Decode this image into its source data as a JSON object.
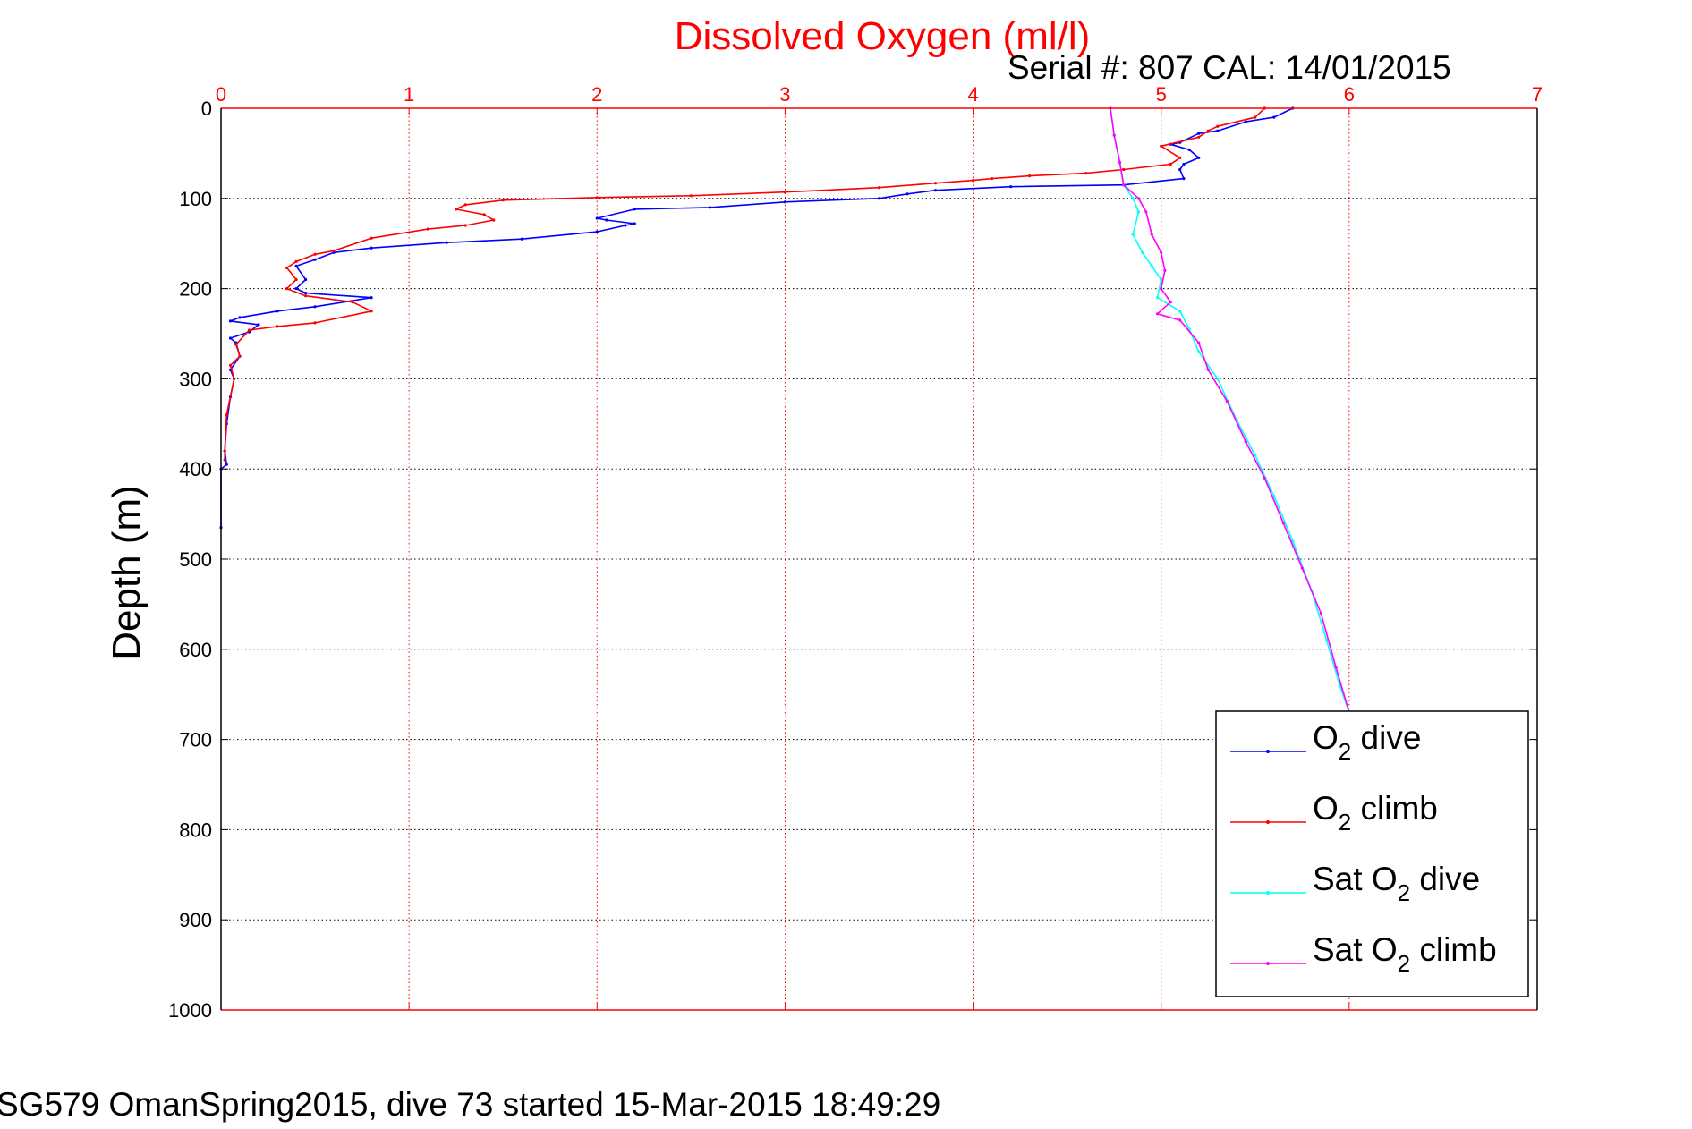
{
  "chart_data": {
    "type": "line",
    "title": "Dissolved Oxygen (ml/l)",
    "subtitle": "Serial #: 807  CAL: 14/01/2015",
    "caption": "SG579 OmanSpring2015, dive 73 started 15-Mar-2015 18:49:29",
    "xlabel": "",
    "ylabel": "Depth (m)",
    "xlim": [
      0,
      7
    ],
    "ylim": [
      0,
      1000
    ],
    "y_reversed": true,
    "x_axis_position": "top",
    "x_ticks": [
      "0",
      "1",
      "2",
      "3",
      "4",
      "5",
      "6",
      "7"
    ],
    "y_ticks": [
      "0",
      "100",
      "200",
      "300",
      "400",
      "500",
      "600",
      "700",
      "800",
      "900",
      "1000"
    ],
    "grid": true,
    "legend_position": "bottom-right",
    "colors": {
      "title": "#ff0000",
      "x_axis": "#ff0000",
      "y_axis": "#000000"
    },
    "series": [
      {
        "name": "O2 dive",
        "legend": {
          "main": "O",
          "sub": "2",
          "rest": " dive"
        },
        "color": "#0000ff",
        "points": [
          [
            5.7,
            0
          ],
          [
            5.6,
            10
          ],
          [
            5.45,
            15
          ],
          [
            5.3,
            25
          ],
          [
            5.2,
            28
          ],
          [
            5.1,
            38
          ],
          [
            5.05,
            40
          ],
          [
            5.15,
            46
          ],
          [
            5.2,
            55
          ],
          [
            5.12,
            62
          ],
          [
            5.1,
            68
          ],
          [
            5.12,
            78
          ],
          [
            4.8,
            85
          ],
          [
            4.2,
            87
          ],
          [
            3.8,
            91
          ],
          [
            3.65,
            95
          ],
          [
            3.5,
            100
          ],
          [
            3.0,
            104
          ],
          [
            2.6,
            110
          ],
          [
            2.2,
            112
          ],
          [
            2.0,
            122
          ],
          [
            2.05,
            124
          ],
          [
            2.2,
            128
          ],
          [
            2.15,
            130
          ],
          [
            2.0,
            137
          ],
          [
            1.6,
            145
          ],
          [
            1.2,
            149
          ],
          [
            0.8,
            155
          ],
          [
            0.6,
            160
          ],
          [
            0.5,
            168
          ],
          [
            0.4,
            175
          ],
          [
            0.45,
            190
          ],
          [
            0.4,
            200
          ],
          [
            0.45,
            205
          ],
          [
            0.8,
            210
          ],
          [
            0.5,
            220
          ],
          [
            0.3,
            225
          ],
          [
            0.1,
            232
          ],
          [
            0.05,
            236
          ],
          [
            0.2,
            240
          ],
          [
            0.15,
            248
          ],
          [
            0.05,
            255
          ],
          [
            0.08,
            260
          ],
          [
            0.1,
            275
          ],
          [
            0.05,
            290
          ],
          [
            0.07,
            300
          ],
          [
            0.05,
            320
          ],
          [
            0.03,
            350
          ],
          [
            0.02,
            380
          ],
          [
            0.03,
            395
          ],
          [
            0.0,
            400
          ],
          [
            0.0,
            465
          ]
        ]
      },
      {
        "name": "O2 climb",
        "legend": {
          "main": "O",
          "sub": "2",
          "rest": " climb"
        },
        "color": "#ff0000",
        "points": [
          [
            5.55,
            0
          ],
          [
            5.5,
            10
          ],
          [
            5.3,
            20
          ],
          [
            5.25,
            25
          ],
          [
            5.2,
            32
          ],
          [
            5.0,
            42
          ],
          [
            5.1,
            55
          ],
          [
            5.05,
            62
          ],
          [
            4.8,
            68
          ],
          [
            4.6,
            72
          ],
          [
            4.3,
            75
          ],
          [
            4.1,
            78
          ],
          [
            4.0,
            80
          ],
          [
            3.8,
            83
          ],
          [
            3.5,
            88
          ],
          [
            3.0,
            93
          ],
          [
            2.5,
            97
          ],
          [
            2.0,
            99
          ],
          [
            1.5,
            102
          ],
          [
            1.3,
            107
          ],
          [
            1.25,
            112
          ],
          [
            1.4,
            118
          ],
          [
            1.45,
            124
          ],
          [
            1.3,
            130
          ],
          [
            1.1,
            134
          ],
          [
            0.8,
            144
          ],
          [
            0.6,
            158
          ],
          [
            0.5,
            162
          ],
          [
            0.4,
            170
          ],
          [
            0.35,
            177
          ],
          [
            0.4,
            190
          ],
          [
            0.35,
            200
          ],
          [
            0.45,
            208
          ],
          [
            0.7,
            215
          ],
          [
            0.8,
            225
          ],
          [
            0.5,
            238
          ],
          [
            0.3,
            242
          ],
          [
            0.15,
            246
          ],
          [
            0.08,
            262
          ],
          [
            0.1,
            275
          ],
          [
            0.05,
            285
          ],
          [
            0.07,
            300
          ],
          [
            0.03,
            340
          ],
          [
            0.02,
            380
          ],
          [
            0.02,
            390
          ]
        ]
      },
      {
        "name": "Sat O2 dive",
        "legend": {
          "main": "Sat O",
          "sub": "2",
          "rest": " dive"
        },
        "color": "#00ffff",
        "points": [
          [
            4.73,
            0
          ],
          [
            4.75,
            30
          ],
          [
            4.78,
            60
          ],
          [
            4.8,
            85
          ],
          [
            4.85,
            100
          ],
          [
            4.88,
            115
          ],
          [
            4.85,
            140
          ],
          [
            4.9,
            160
          ],
          [
            4.95,
            175
          ],
          [
            5.0,
            190
          ],
          [
            4.98,
            210
          ],
          [
            5.1,
            225
          ],
          [
            5.15,
            245
          ],
          [
            5.2,
            270
          ],
          [
            5.3,
            300
          ],
          [
            5.4,
            345
          ],
          [
            5.5,
            385
          ],
          [
            5.6,
            430
          ],
          [
            5.7,
            480
          ],
          [
            5.8,
            535
          ],
          [
            5.88,
            590
          ],
          [
            5.95,
            640
          ],
          [
            6.0,
            670
          ]
        ]
      },
      {
        "name": "Sat O2 climb",
        "legend": {
          "main": "Sat O",
          "sub": "2",
          "rest": " climb"
        },
        "color": "#ff00ff",
        "points": [
          [
            4.73,
            0
          ],
          [
            4.75,
            30
          ],
          [
            4.78,
            60
          ],
          [
            4.8,
            85
          ],
          [
            4.88,
            100
          ],
          [
            4.92,
            115
          ],
          [
            4.95,
            140
          ],
          [
            5.0,
            160
          ],
          [
            5.02,
            180
          ],
          [
            5.0,
            200
          ],
          [
            5.05,
            215
          ],
          [
            4.98,
            228
          ],
          [
            5.1,
            235
          ],
          [
            5.2,
            260
          ],
          [
            5.25,
            290
          ],
          [
            5.35,
            325
          ],
          [
            5.45,
            370
          ],
          [
            5.55,
            410
          ],
          [
            5.65,
            460
          ],
          [
            5.75,
            510
          ],
          [
            5.85,
            560
          ],
          [
            5.93,
            620
          ],
          [
            6.0,
            670
          ]
        ]
      }
    ]
  }
}
